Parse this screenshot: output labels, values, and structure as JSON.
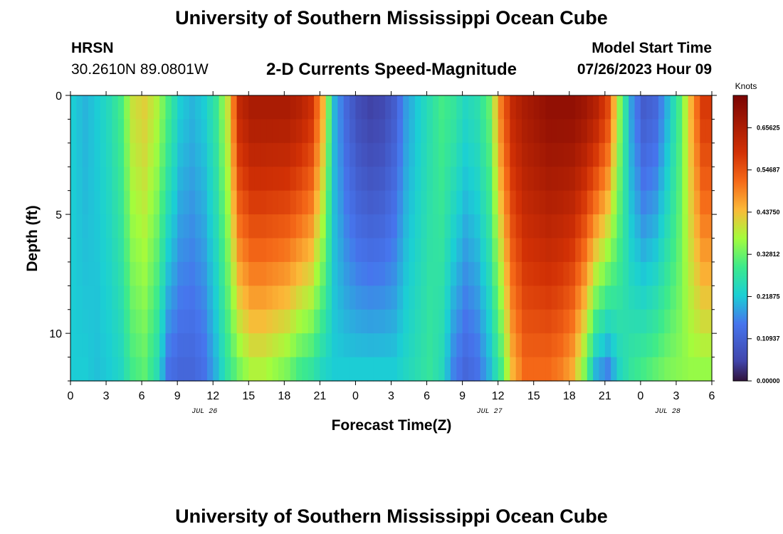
{
  "header": {
    "title": "University of Southern Mississippi Ocean Cube",
    "station": "HRSN",
    "coordinates": "30.2610N  89.0801W",
    "plot_title": "2-D Currents Speed-Magnitude",
    "model_start_label": "Model Start Time",
    "model_start_value": "07/26/2023 Hour 09"
  },
  "footer": {
    "title": "University of Southern Mississippi Ocean Cube"
  },
  "chart_data": {
    "type": "heatmap",
    "title": "2-D Currents Speed-Magnitude",
    "xlabel": "Forecast Time(Z)",
    "ylabel": "Depth (ft)",
    "x_range_hours": [
      0,
      54
    ],
    "y_range_ft": [
      0,
      12
    ],
    "x_ticks": [
      {
        "hour": 0,
        "label": "0"
      },
      {
        "hour": 3,
        "label": "3"
      },
      {
        "hour": 6,
        "label": "6"
      },
      {
        "hour": 9,
        "label": "9"
      },
      {
        "hour": 12,
        "label": "12"
      },
      {
        "hour": 15,
        "label": "15"
      },
      {
        "hour": 18,
        "label": "18"
      },
      {
        "hour": 21,
        "label": "21"
      },
      {
        "hour": 24,
        "label": "0"
      },
      {
        "hour": 27,
        "label": "3"
      },
      {
        "hour": 30,
        "label": "6"
      },
      {
        "hour": 33,
        "label": "9"
      },
      {
        "hour": 36,
        "label": "12"
      },
      {
        "hour": 39,
        "label": "15"
      },
      {
        "hour": 42,
        "label": "18"
      },
      {
        "hour": 45,
        "label": "21"
      },
      {
        "hour": 48,
        "label": "0"
      },
      {
        "hour": 51,
        "label": "3"
      },
      {
        "hour": 54,
        "label": "6"
      }
    ],
    "date_labels": [
      {
        "hour": 12,
        "label": "JUL 26"
      },
      {
        "hour": 36,
        "label": "JUL 27"
      },
      {
        "hour": 51,
        "label": "JUL 28"
      }
    ],
    "y_ticks": [
      {
        "depth": 0,
        "label": "0"
      },
      {
        "depth": 5,
        "label": "5"
      },
      {
        "depth": 10,
        "label": "10"
      }
    ],
    "colorbar": {
      "title": "Knots",
      "min": 0,
      "max": 0.74,
      "ticks": [
        {
          "value": 0.0,
          "label": "0.00000"
        },
        {
          "value": 0.109375,
          "label": "0.10937"
        },
        {
          "value": 0.21875,
          "label": "0.21875"
        },
        {
          "value": 0.328125,
          "label": "0.32812"
        },
        {
          "value": 0.4375,
          "label": "0.43750"
        },
        {
          "value": 0.546875,
          "label": "0.54687"
        },
        {
          "value": 0.65625,
          "label": "0.65625"
        }
      ]
    },
    "speed_profile_by_hour": {
      "hours": [
        0,
        1,
        2,
        3,
        4,
        5,
        6,
        7,
        8,
        9,
        10,
        11,
        12,
        13,
        14,
        15,
        16,
        17,
        18,
        19,
        20,
        21,
        22,
        23,
        24,
        25,
        26,
        27,
        28,
        29,
        30,
        31,
        32,
        33,
        34,
        35,
        36,
        37,
        38,
        39,
        40,
        41,
        42,
        43,
        44,
        45,
        46,
        47,
        48,
        49,
        50,
        51,
        52,
        53
      ],
      "surface": [
        0.22,
        0.2,
        0.22,
        0.25,
        0.3,
        0.4,
        0.42,
        0.38,
        0.3,
        0.22,
        0.2,
        0.22,
        0.28,
        0.4,
        0.62,
        0.66,
        0.66,
        0.66,
        0.66,
        0.64,
        0.6,
        0.45,
        0.2,
        0.12,
        0.07,
        0.05,
        0.06,
        0.1,
        0.18,
        0.22,
        0.26,
        0.3,
        0.28,
        0.24,
        0.26,
        0.32,
        0.5,
        0.62,
        0.66,
        0.68,
        0.7,
        0.7,
        0.7,
        0.68,
        0.64,
        0.56,
        0.35,
        0.18,
        0.1,
        0.12,
        0.2,
        0.3,
        0.45,
        0.58
      ],
      "bottom": [
        0.22,
        0.22,
        0.21,
        0.22,
        0.24,
        0.3,
        0.32,
        0.26,
        0.14,
        0.12,
        0.12,
        0.14,
        0.2,
        0.28,
        0.34,
        0.38,
        0.38,
        0.36,
        0.34,
        0.3,
        0.28,
        0.24,
        0.22,
        0.22,
        0.22,
        0.22,
        0.22,
        0.22,
        0.24,
        0.26,
        0.28,
        0.25,
        0.16,
        0.12,
        0.14,
        0.2,
        0.3,
        0.45,
        0.52,
        0.52,
        0.52,
        0.5,
        0.46,
        0.35,
        0.2,
        0.16,
        0.24,
        0.28,
        0.3,
        0.32,
        0.34,
        0.35,
        0.36,
        0.36
      ]
    }
  }
}
